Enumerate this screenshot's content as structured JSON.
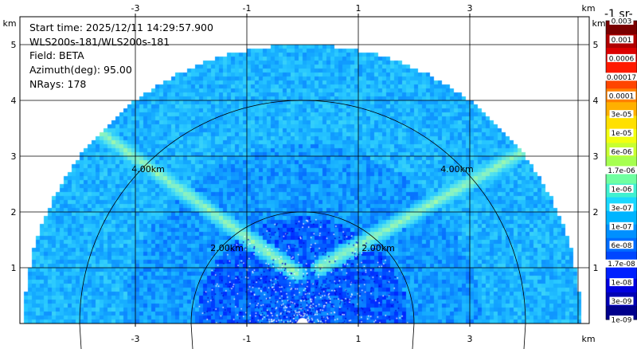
{
  "info": {
    "start_time": "Start time: 2025/12/11 14:29:57.900",
    "instrument": "WLS200s-181/WLS200s-181",
    "field": "Field: BETA",
    "azimuth": "Azimuth(deg): 95.00",
    "nrays": "NRays: 178"
  },
  "colorbar": {
    "title": "-1 sr-",
    "labels": [
      "0.003",
      "0.001",
      "0.0006",
      "0.00017",
      "0.0001",
      "3e-05",
      "1e-05",
      "6e-06",
      "1.7e-06",
      "1e-06",
      "3e-07",
      "1e-07",
      "6e-08",
      "1.7e-08",
      "1e-08",
      "3e-09",
      "1e-09"
    ],
    "colors": [
      "#7a0000",
      "#b00000",
      "#dc0000",
      "#ff1a00",
      "#ff4500",
      "#ff8000",
      "#ffb000",
      "#ffe000",
      "#f2ff10",
      "#c8ff30",
      "#a6ff50",
      "#70ffa0",
      "#40f0d0",
      "#1ad8ff",
      "#00b4ff",
      "#0090ff",
      "#006cff",
      "#0046ff",
      "#0020ff",
      "#0000e0",
      "#0000b4",
      "#00008c"
    ]
  },
  "chart_data": {
    "type": "heatmap",
    "projection": "RHI (range-height indicator), semicircular sector",
    "x_unit": "km",
    "y_unit": "km",
    "x_ticks": [
      "-3",
      "-1",
      "1",
      "3"
    ],
    "y_ticks": [
      "1",
      "2",
      "3",
      "4",
      "5"
    ],
    "xlim": [
      -5.0,
      5.0
    ],
    "ylim": [
      0,
      5.5
    ],
    "max_range_km": 5.0,
    "range_rings": [
      {
        "range_km": 2.0,
        "label": "2.00km"
      },
      {
        "range_km": 4.0,
        "label": "4.00km"
      }
    ],
    "grid": true,
    "field": "BETA",
    "color_scale": "log",
    "value_range": [
      1e-09,
      0.003
    ],
    "enhanced_features": [
      {
        "name": "left layer",
        "from": [
          -0.1,
          0.9
        ],
        "to": [
          -3.6,
          3.4
        ]
      },
      {
        "name": "right layer",
        "from": [
          0.3,
          1.0
        ],
        "to": [
          4.0,
          3.1
        ]
      }
    ]
  }
}
